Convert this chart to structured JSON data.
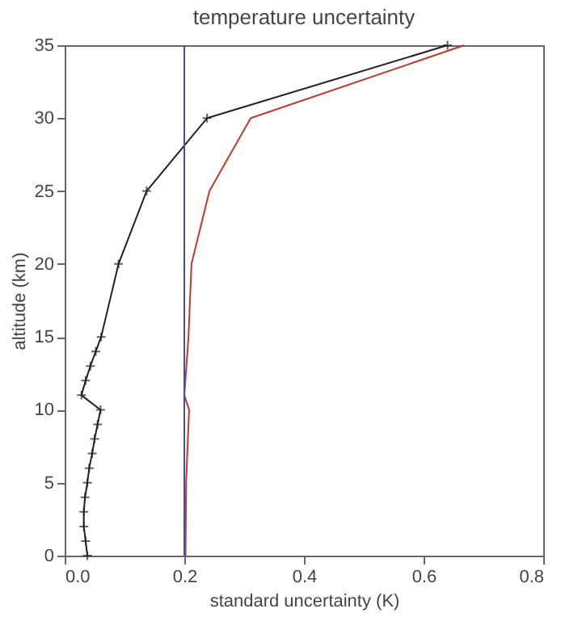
{
  "chart_data": {
    "type": "line",
    "title": "temperature uncertainty",
    "xlabel": "standard uncertainty (K)",
    "ylabel": "altitude (km)",
    "xlim": [
      0.0,
      0.8
    ],
    "xticks": [
      {
        "value": 0.0,
        "label": "0.0"
      },
      0.2,
      0.4,
      0.6,
      0.8
    ],
    "ylim": [
      0,
      35
    ],
    "yticks": [
      0,
      5,
      10,
      15,
      20,
      25,
      30,
      35
    ],
    "series": [
      {
        "color": "#202020",
        "marker": "cross",
        "x": [
          0.038,
          0.035,
          0.032,
          0.032,
          0.034,
          0.038,
          0.041,
          0.046,
          0.05,
          0.055,
          0.06,
          0.028,
          0.035,
          0.043,
          0.052,
          0.061,
          0.09,
          0.137,
          0.238,
          0.64
        ],
        "values": [
          0,
          1,
          2,
          3,
          4,
          5,
          6,
          7,
          8,
          9,
          10,
          11,
          12,
          13,
          14,
          15,
          20,
          25,
          30,
          35
        ]
      },
      {
        "color": "#c0392b",
        "marker": "none",
        "x": [
          0.202,
          0.203,
          0.208,
          0.2,
          0.207,
          0.212,
          0.242,
          0.311,
          0.668
        ],
        "values": [
          0,
          5,
          10,
          11,
          15,
          20,
          25,
          30,
          35
        ]
      }
    ],
    "ref_lines": [
      {
        "axis": "x",
        "value": 0.2,
        "color": "#4a4aa8"
      }
    ],
    "grid": false
  }
}
